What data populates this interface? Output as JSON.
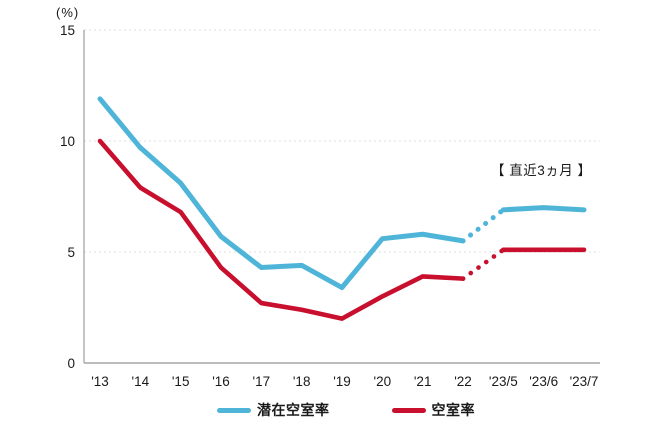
{
  "chart_data": {
    "type": "line",
    "title": "",
    "ylabel": "(%)",
    "xlabel": "",
    "categories": [
      "'13",
      "'14",
      "'15",
      "'16",
      "'17",
      "'18",
      "'19",
      "'20",
      "'21",
      "'22",
      "'23/5",
      "'23/6",
      "'23/7"
    ],
    "ylim": [
      0,
      15
    ],
    "yticks": [
      0,
      5,
      10,
      15
    ],
    "grid": "horizontal-dotted",
    "legend_position": "bottom",
    "annotation": "【 直近3ヵ月 】",
    "dotted_segment_between": [
      "'22",
      "'23/5"
    ],
    "colors": {
      "axis": "#a6a6a6",
      "gridline": "#dcdcdc",
      "tick_text": "#1a1a1a"
    },
    "series": [
      {
        "name": "潜在空室率",
        "color": "#4eb5d8",
        "values": [
          11.9,
          9.7,
          8.1,
          5.7,
          4.3,
          4.4,
          3.4,
          5.6,
          5.8,
          5.5,
          6.9,
          7.0,
          6.9
        ]
      },
      {
        "name": "空室率",
        "color": "#c8102e",
        "values": [
          10.0,
          7.9,
          6.8,
          4.3,
          2.7,
          2.4,
          2.0,
          3.0,
          3.9,
          3.8,
          5.1,
          5.1,
          5.1
        ]
      }
    ]
  }
}
